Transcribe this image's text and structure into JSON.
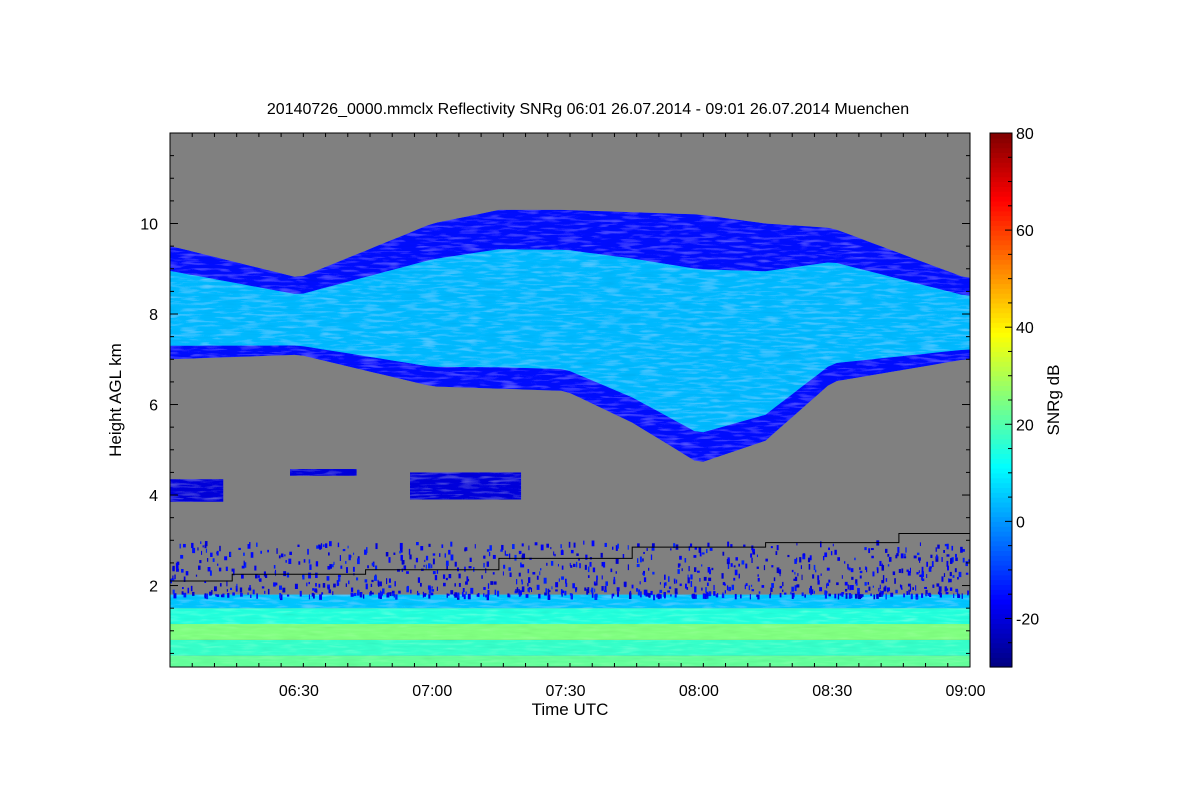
{
  "chart_data": {
    "type": "heatmap",
    "title": "20140726_0000.mmclx Reflectivity SNRg   06:01 26.07.2014 - 09:01 26.07.2014 Muenchen",
    "xlabel": "Time UTC",
    "ylabel": "Height AGL km",
    "xlim": [
      "06:01",
      "09:01"
    ],
    "ylim": [
      0.2,
      12.0
    ],
    "x_ticks": [
      "06:30",
      "07:00",
      "07:30",
      "08:00",
      "08:30",
      "09:00"
    ],
    "y_ticks": [
      "2",
      "4",
      "6",
      "8",
      "10"
    ],
    "colorbar": {
      "label": "SNRg dB",
      "range": [
        -30,
        80
      ],
      "ticks": [
        "-20",
        "0",
        "20",
        "40",
        "60",
        "80"
      ],
      "colormap": "jet"
    },
    "background_color": "#808080",
    "missing_value_color": "#808080",
    "features": {
      "upper_cloud_layer": {
        "base_km_by_time": [
          [
            6.02,
            7.0
          ],
          [
            6.5,
            7.1
          ],
          [
            7.0,
            6.4
          ],
          [
            7.5,
            6.3
          ],
          [
            7.75,
            5.6
          ],
          [
            8.0,
            4.7
          ],
          [
            8.25,
            5.2
          ],
          [
            8.5,
            6.5
          ],
          [
            9.0,
            7.0
          ]
        ],
        "top_km_by_time": [
          [
            6.02,
            9.5
          ],
          [
            6.5,
            8.8
          ],
          [
            7.0,
            10.0
          ],
          [
            7.25,
            10.3
          ],
          [
            7.5,
            10.3
          ],
          [
            8.0,
            10.2
          ],
          [
            8.25,
            10.0
          ],
          [
            8.5,
            9.9
          ],
          [
            9.0,
            8.8
          ]
        ],
        "typical_snr_db": [
          -15,
          15
        ]
      },
      "thin_layer_4km": {
        "height_km": 4.1,
        "time_range": [
          "06:01",
          "07:20"
        ],
        "typical_snr_db": -20
      },
      "boundary_layer_echo": {
        "height_range_km": [
          0.2,
          1.8
        ],
        "typical_snr_db": [
          10,
          35
        ]
      },
      "noise_zone": {
        "height_range_km": [
          1.8,
          3.0
        ]
      },
      "boundary_layer_height_line": {
        "points": [
          [
            "06:01",
            2.1
          ],
          [
            "06:15",
            2.1
          ],
          [
            "06:15",
            2.25
          ],
          [
            "06:45",
            2.25
          ],
          [
            "06:45",
            2.35
          ],
          [
            "07:15",
            2.35
          ],
          [
            "07:15",
            2.6
          ],
          [
            "07:45",
            2.6
          ],
          [
            "07:45",
            2.85
          ],
          [
            "08:15",
            2.85
          ],
          [
            "08:15",
            2.95
          ],
          [
            "08:45",
            2.95
          ],
          [
            "08:45",
            3.15
          ],
          [
            "09:01",
            3.15
          ]
        ]
      }
    }
  }
}
